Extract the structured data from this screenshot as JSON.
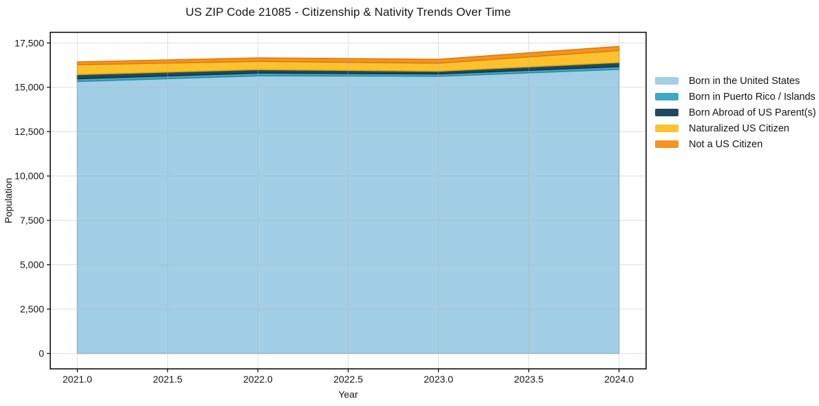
{
  "chart_data": {
    "type": "area",
    "stacked": true,
    "title": "US ZIP Code 21085 - Citizenship & Nativity Trends Over Time",
    "xlabel": "Year",
    "ylabel": "Population",
    "x": [
      2021,
      2022,
      2023,
      2024
    ],
    "series": [
      {
        "name": "Born in the United States",
        "values": [
          15330,
          15650,
          15625,
          16010
        ],
        "color": "#a2cfe5",
        "edge_color": "#8bbcd6"
      },
      {
        "name": "Born in Puerto Rico / Islands",
        "values": [
          155,
          155,
          130,
          155
        ],
        "color": "#3fa8c6",
        "edge_color": "#2e8aa4"
      },
      {
        "name": "Born Abroad of US Parent(s)",
        "values": [
          235,
          195,
          155,
          235
        ],
        "color": "#1f4a5e",
        "edge_color": "#143444"
      },
      {
        "name": "Naturalized US Citizen",
        "values": [
          555,
          465,
          450,
          675
        ],
        "color": "#fbc22d",
        "edge_color": "#e2a70f"
      },
      {
        "name": "Not a US Citizen",
        "values": [
          155,
          195,
          220,
          230
        ],
        "color": "#f6941f",
        "edge_color": "#dd7c0e"
      }
    ],
    "totals_by_year": [
      16430,
      16660,
      16580,
      17305
    ],
    "xlim": [
      2020.85,
      2024.15
    ],
    "ylim": [
      -870,
      18100
    ],
    "xticks": [
      2021.0,
      2021.5,
      2022.0,
      2022.5,
      2023.0,
      2023.5,
      2024.0
    ],
    "xtick_labels": [
      "2021.0",
      "2021.5",
      "2022.0",
      "2022.5",
      "2023.0",
      "2023.5",
      "2024.0"
    ],
    "yticks": [
      0,
      2500,
      5000,
      7500,
      10000,
      12500,
      15000,
      17500
    ],
    "ytick_labels": [
      "0",
      "2,500",
      "5,000",
      "7,500",
      "10,000",
      "12,500",
      "15,000",
      "17,500"
    ],
    "grid": true,
    "grid_color": "#b0b0b0",
    "frame_color": "#000000",
    "background_color": "#ffffff",
    "legend_position": "right-outside"
  }
}
